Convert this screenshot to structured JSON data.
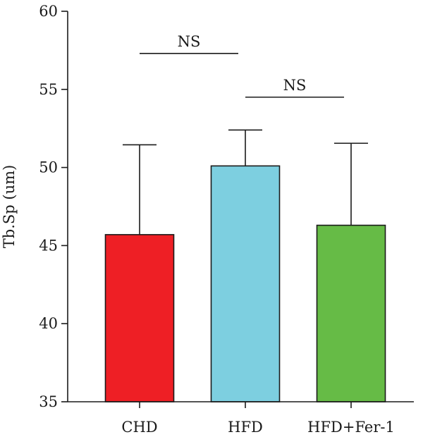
{
  "chart_data": {
    "type": "bar",
    "title": "",
    "xlabel": "",
    "ylabel": "Tb.Sp (um)",
    "ylim": [
      35,
      60
    ],
    "yticks": [
      35,
      40,
      45,
      50,
      55,
      60
    ],
    "grid": false,
    "categories": [
      "CHD",
      "HFD",
      "HFD+Fer-1"
    ],
    "values": [
      45.7,
      50.1,
      46.3
    ],
    "errors": [
      5.75,
      2.3,
      5.25
    ],
    "colors": [
      "#ee1f25",
      "#7dcfe0",
      "#66bb46"
    ],
    "annotations": [
      {
        "label": "NS",
        "from": "CHD",
        "to": "HFD",
        "y": 57.3
      },
      {
        "label": "NS",
        "from": "HFD",
        "to": "HFD+Fer-1",
        "y": 54.5
      }
    ]
  }
}
